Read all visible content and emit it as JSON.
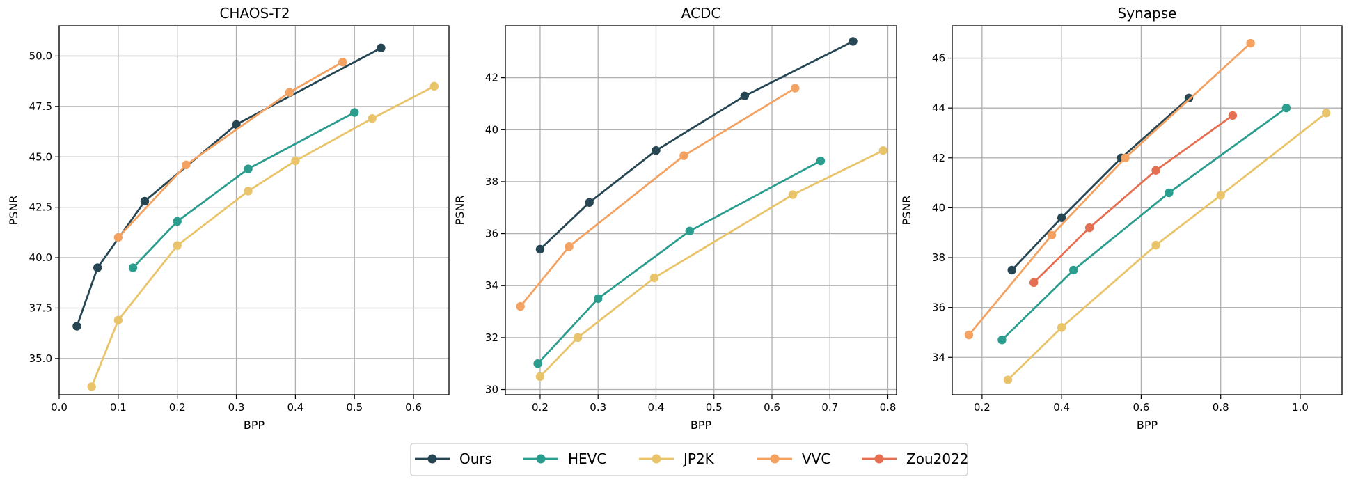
{
  "colors": {
    "Ours": "#264653",
    "HEVC": "#2a9d8f",
    "JP2K": "#e9c46a",
    "VVC": "#f4a261",
    "Zou2022": "#e76f51",
    "grid": "#b0b0b0"
  },
  "legend": {
    "placement": "bottom-center",
    "entries": [
      "Ours",
      "HEVC",
      "JP2K",
      "VVC",
      "Zou2022"
    ]
  },
  "chart_data": [
    {
      "type": "line",
      "title": "CHAOS-T2",
      "xlabel": "BPP",
      "ylabel": "PSNR",
      "xlim": [
        0.0,
        0.66
      ],
      "ylim": [
        33.2,
        51.5
      ],
      "xticks": [
        0.0,
        0.1,
        0.2,
        0.3,
        0.4,
        0.5,
        0.6
      ],
      "xtick_labels": [
        "0.0",
        "0.1",
        "0.2",
        "0.3",
        "0.4",
        "0.5",
        "0.6"
      ],
      "yticks": [
        35.0,
        37.5,
        40.0,
        42.5,
        45.0,
        47.5,
        50.0
      ],
      "ytick_labels": [
        "35.0",
        "37.5",
        "40.0",
        "42.5",
        "45.0",
        "47.5",
        "50.0"
      ],
      "grid": true,
      "series": [
        {
          "name": "Ours",
          "x": [
            0.03,
            0.065,
            0.145,
            0.3,
            0.545
          ],
          "y": [
            36.6,
            39.5,
            42.8,
            46.6,
            50.4
          ]
        },
        {
          "name": "HEVC",
          "x": [
            0.125,
            0.2,
            0.32,
            0.5
          ],
          "y": [
            39.5,
            41.8,
            44.4,
            47.2
          ]
        },
        {
          "name": "JP2K",
          "x": [
            0.055,
            0.1,
            0.2,
            0.32,
            0.4,
            0.53,
            0.635
          ],
          "y": [
            33.6,
            36.9,
            40.6,
            43.3,
            44.8,
            46.9,
            48.5
          ]
        },
        {
          "name": "VVC",
          "x": [
            0.1,
            0.215,
            0.39,
            0.48
          ],
          "y": [
            41.0,
            44.6,
            48.2,
            49.7
          ]
        }
      ]
    },
    {
      "type": "line",
      "title": "ACDC",
      "xlabel": "BPP",
      "ylabel": "PSNR",
      "xlim": [
        0.14,
        0.815
      ],
      "ylim": [
        29.8,
        44.0
      ],
      "xticks": [
        0.2,
        0.3,
        0.4,
        0.5,
        0.6,
        0.7,
        0.8
      ],
      "xtick_labels": [
        "0.2",
        "0.3",
        "0.4",
        "0.5",
        "0.6",
        "0.7",
        "0.8"
      ],
      "yticks": [
        30,
        32,
        34,
        36,
        38,
        40,
        42
      ],
      "ytick_labels": [
        "30",
        "32",
        "34",
        "36",
        "38",
        "40",
        "42"
      ],
      "grid": true,
      "series": [
        {
          "name": "Ours",
          "x": [
            0.2,
            0.285,
            0.4,
            0.553,
            0.74
          ],
          "y": [
            35.4,
            37.2,
            39.2,
            41.3,
            43.4
          ]
        },
        {
          "name": "HEVC",
          "x": [
            0.196,
            0.3,
            0.458,
            0.684
          ],
          "y": [
            31.0,
            33.5,
            36.1,
            38.8
          ]
        },
        {
          "name": "JP2K",
          "x": [
            0.2,
            0.265,
            0.397,
            0.636,
            0.792
          ],
          "y": [
            30.5,
            32.0,
            34.3,
            37.5,
            39.2
          ]
        },
        {
          "name": "VVC",
          "x": [
            0.166,
            0.25,
            0.448,
            0.64
          ],
          "y": [
            33.2,
            35.5,
            39.0,
            41.6
          ]
        }
      ]
    },
    {
      "type": "line",
      "title": "Synapse",
      "xlabel": "BPP",
      "ylabel": "PSNR",
      "xlim": [
        0.125,
        1.105
      ],
      "ylim": [
        32.5,
        47.3
      ],
      "xticks": [
        0.2,
        0.4,
        0.6,
        0.8,
        1.0
      ],
      "xtick_labels": [
        "0.2",
        "0.4",
        "0.6",
        "0.8",
        "1.0"
      ],
      "yticks": [
        34,
        36,
        38,
        40,
        42,
        44,
        46
      ],
      "ytick_labels": [
        "34",
        "36",
        "38",
        "40",
        "42",
        "44",
        "46"
      ],
      "grid": true,
      "series": [
        {
          "name": "Ours",
          "x": [
            0.275,
            0.4,
            0.55,
            0.72
          ],
          "y": [
            37.5,
            39.6,
            42.0,
            44.4
          ]
        },
        {
          "name": "HEVC",
          "x": [
            0.25,
            0.43,
            0.67,
            0.965
          ],
          "y": [
            34.7,
            37.5,
            40.6,
            44.0
          ]
        },
        {
          "name": "JP2K",
          "x": [
            0.265,
            0.4,
            0.637,
            0.8,
            1.065
          ],
          "y": [
            33.1,
            35.2,
            38.5,
            40.5,
            43.8
          ]
        },
        {
          "name": "VVC",
          "x": [
            0.167,
            0.375,
            0.56,
            0.875
          ],
          "y": [
            34.9,
            38.9,
            42.0,
            46.6
          ]
        },
        {
          "name": "Zou2022",
          "x": [
            0.33,
            0.47,
            0.637,
            0.83
          ],
          "y": [
            37.0,
            39.2,
            41.5,
            43.7
          ]
        }
      ]
    }
  ]
}
